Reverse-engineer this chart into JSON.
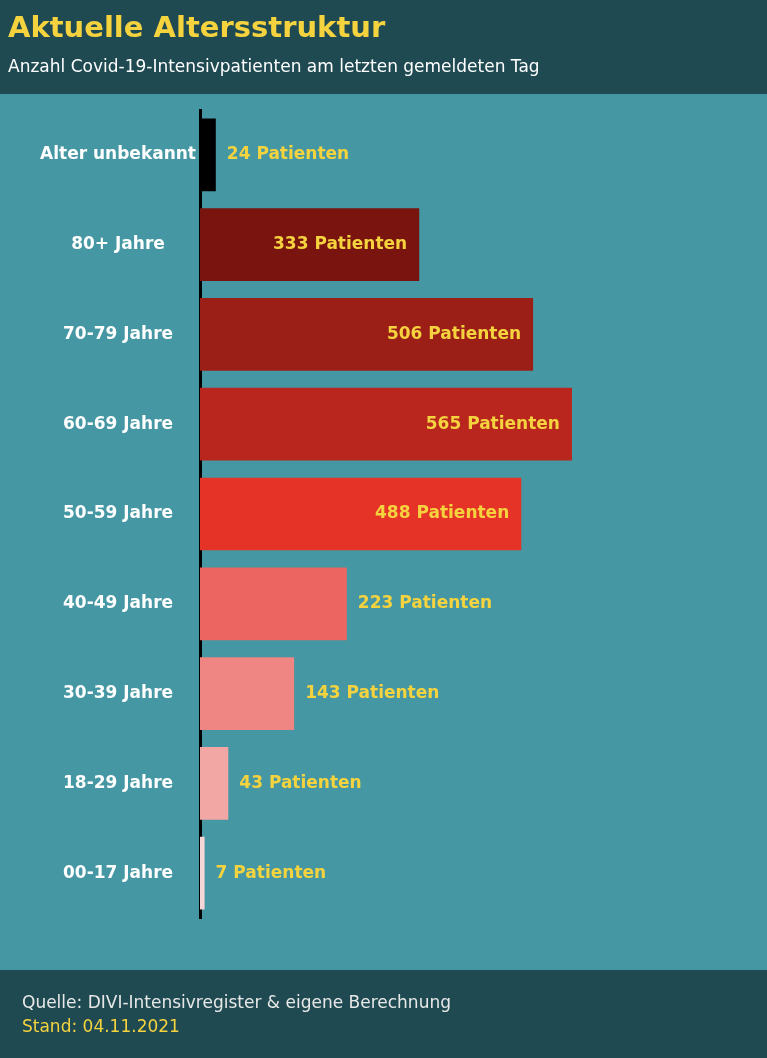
{
  "chart_data": {
    "type": "bar",
    "orientation": "horizontal",
    "title": "Aktuelle Altersstruktur",
    "subtitle": "Anzahl Covid-19-Intensivpatienten am letzten gemeldeten Tag",
    "categories": [
      "Alter unbekannt",
      "80+ Jahre",
      "70-79 Jahre",
      "60-69 Jahre",
      "50-59 Jahre",
      "40-49 Jahre",
      "30-39 Jahre",
      "18-29 Jahre",
      "00-17 Jahre"
    ],
    "values": [
      24,
      333,
      506,
      565,
      488,
      223,
      143,
      43,
      7
    ],
    "colors": [
      "#000000",
      "#7a140e",
      "#9b1f17",
      "#b8261e",
      "#e53427",
      "#ec6560",
      "#ef8683",
      "#f2a7a5",
      "#f5d5d5"
    ],
    "value_labels": [
      "24 Patienten",
      "333 Patienten",
      "506 Patienten",
      "565 Patienten",
      "488 Patienten",
      "223 Patienten",
      "143 Patienten",
      "43 Patienten",
      "7 Patienten"
    ],
    "tick_labels": "y",
    "legend": false,
    "annotations": [
      "Quelle: DIVI-Intensivregister & eigene Berechnung",
      "Stand: 04.11.2021"
    ]
  }
}
